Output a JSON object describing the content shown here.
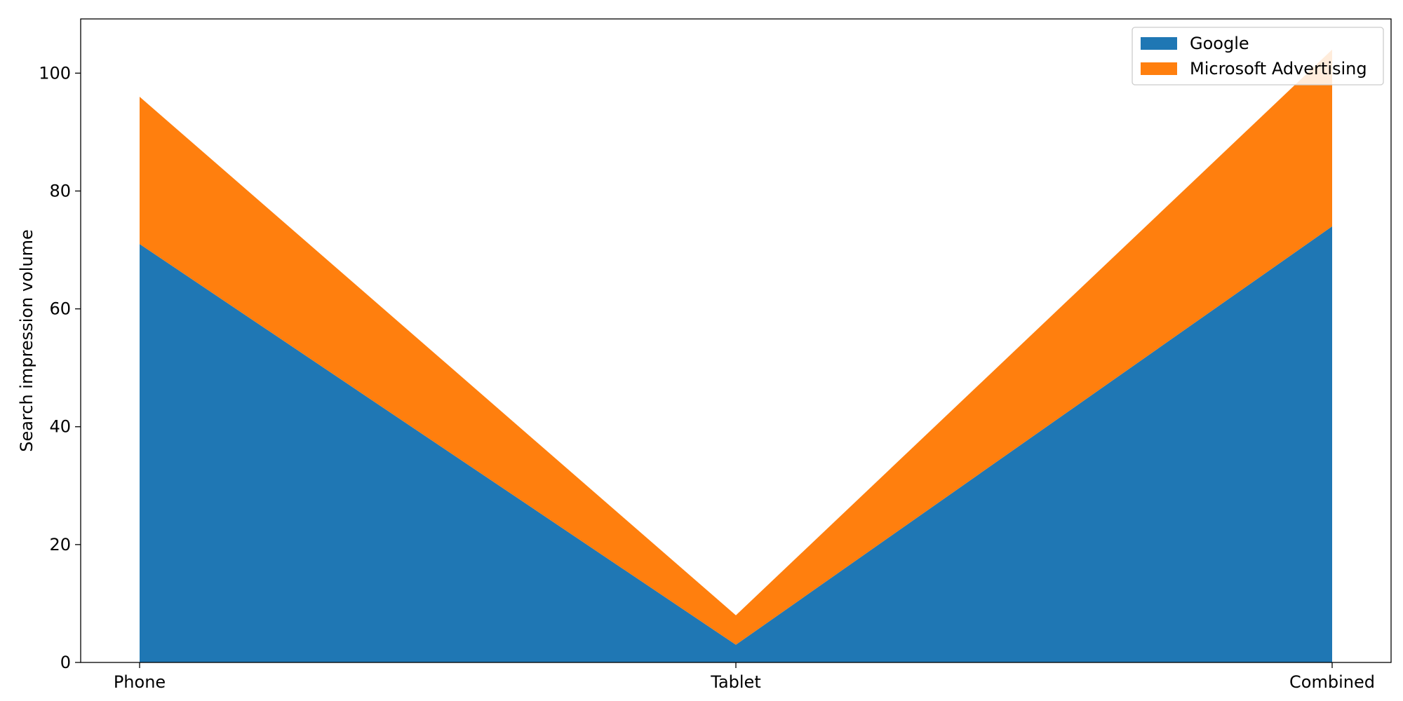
{
  "chart_data": {
    "type": "area",
    "stacked": true,
    "categories": [
      "Phone",
      "Tablet",
      "Combined"
    ],
    "series": [
      {
        "name": "Google",
        "values": [
          71,
          3,
          74
        ],
        "color": "#1f77b4"
      },
      {
        "name": "Microsoft Advertising",
        "values": [
          25,
          5,
          30
        ],
        "color": "#ff7f0e"
      }
    ],
    "title": "",
    "xlabel": "",
    "ylabel": "Search impression volume",
    "ylim": [
      0,
      109.2
    ],
    "yticks": [
      0,
      20,
      40,
      60,
      80,
      100
    ],
    "grid": false,
    "legend_position": "top-right"
  }
}
